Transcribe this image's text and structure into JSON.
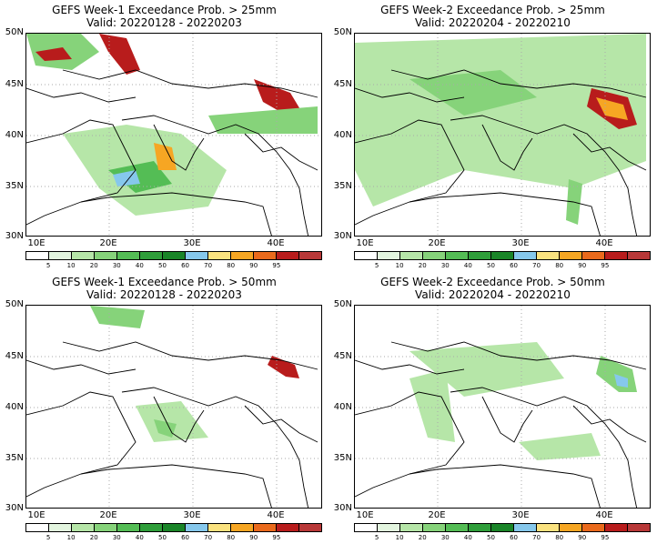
{
  "panels": [
    {
      "title": "GEFS Week-1 Exceedance Prob. > 25mm",
      "valid": "Valid: 20220128 - 20220203"
    },
    {
      "title": "GEFS Week-2 Exceedance Prob. > 25mm",
      "valid": "Valid: 20220204 - 20220210"
    },
    {
      "title": "GEFS Week-1 Exceedance Prob. > 50mm",
      "valid": "Valid: 20220128 - 20220203"
    },
    {
      "title": "GEFS Week-2 Exceedance Prob. > 50mm",
      "valid": "Valid: 20220204 - 20220210"
    }
  ],
  "axes": {
    "lat_labels": [
      "50N",
      "45N",
      "40N",
      "35N",
      "30N"
    ],
    "lon_labels": [
      "10E",
      "20E",
      "30E",
      "40E"
    ]
  },
  "colorbar": {
    "labels": [
      "5",
      "10",
      "20",
      "30",
      "40",
      "50",
      "60",
      "70",
      "80",
      "90",
      "95"
    ],
    "colors": [
      "#ffffff",
      "#e3f5df",
      "#b6e6a8",
      "#86d37a",
      "#54bd55",
      "#2f9e3a",
      "#1a8528",
      "#86c8ec",
      "#fae27f",
      "#f6a623",
      "#ea6a1c",
      "#b81c1c",
      "#b83838"
    ]
  }
}
